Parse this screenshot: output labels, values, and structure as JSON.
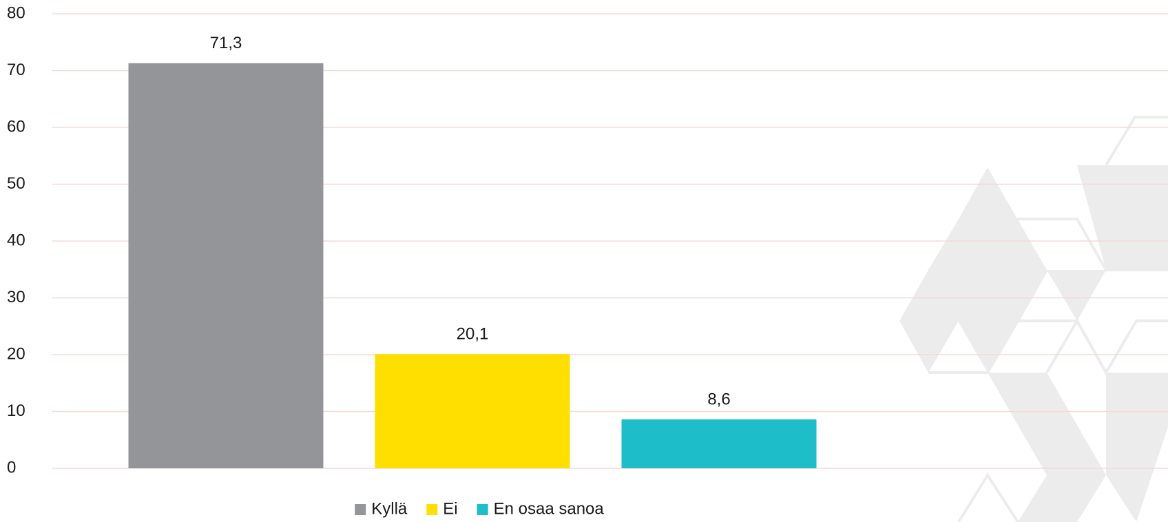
{
  "chart_data": {
    "type": "bar",
    "categories": [
      null
    ],
    "series": [
      {
        "name": "Kyllä",
        "color": "#939598",
        "values": [
          71.3
        ],
        "value_labels": [
          "71,3"
        ]
      },
      {
        "name": "Ei",
        "color": "#ffdf00",
        "values": [
          20.1
        ],
        "value_labels": [
          "20,1"
        ]
      },
      {
        "name": "En osaa sanoa",
        "color": "#1ebdca",
        "values": [
          8.6
        ],
        "value_labels": [
          "8,6"
        ]
      }
    ],
    "ylim": [
      0,
      80
    ],
    "yticks": [
      0,
      10,
      20,
      30,
      40,
      50,
      60,
      70,
      80
    ],
    "grid": true,
    "legend": "bottom"
  }
}
